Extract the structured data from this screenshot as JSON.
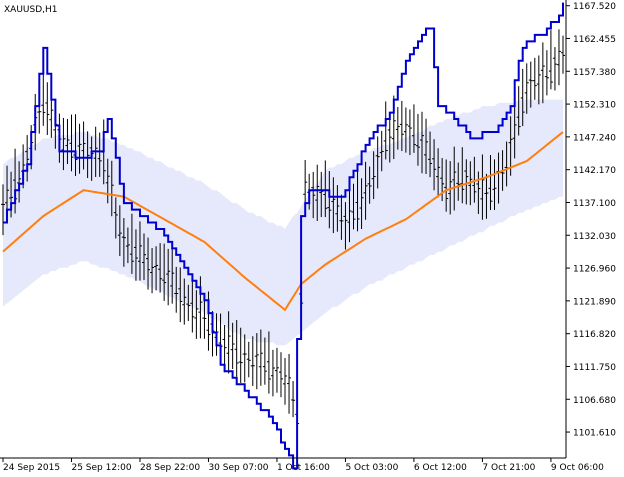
{
  "header": {
    "symbol_label": "XAUUSD,H1"
  },
  "colors": {
    "background": "#ffffff",
    "axis": "#000000",
    "price_bars": "#000000",
    "envelope_fill": "#e6e8fb",
    "moving_average": "#ff7f0e",
    "channel": "#0000cc"
  },
  "chart_data": {
    "type": "line",
    "title": "",
    "symbol": "XAUUSD",
    "timeframe": "H1",
    "y_tick_labels": [
      "1167.520",
      "1162.455",
      "1157.380",
      "1152.310",
      "1147.240",
      "1142.170",
      "1137.100",
      "1132.030",
      "1126.960",
      "1121.890",
      "1116.820",
      "1111.750",
      "1106.680",
      "1101.610"
    ],
    "y_ticks": [
      1167.52,
      1162.455,
      1157.38,
      1152.31,
      1147.24,
      1142.17,
      1137.1,
      1132.03,
      1126.96,
      1121.89,
      1116.82,
      1111.75,
      1106.68,
      1101.61
    ],
    "x_tick_labels": [
      "24 Sep 2015",
      "25 Sep 12:00",
      "28 Sep 22:00",
      "30 Sep 07:00",
      "1 Oct 16:00",
      "5 Oct 03:00",
      "6 Oct 12:00",
      "7 Oct 21:00",
      "9 Oct 06:00"
    ],
    "ylim": [
      1097.6,
      1168.4
    ],
    "n_bars": 140,
    "x_tick_bar_index": [
      0,
      17,
      34,
      51,
      68,
      85,
      102,
      119,
      136
    ],
    "series": [
      {
        "kind": "band",
        "x": [
          0,
          10,
          20,
          30,
          40,
          50,
          60,
          70,
          80,
          90,
          100,
          110,
          120,
          130,
          139
        ],
        "upper": [
          1143,
          1147,
          1148,
          1146,
          1143,
          1140,
          1136,
          1133,
          1142,
          1145,
          1147,
          1150,
          1152,
          1153,
          1153
        ],
        "lower": [
          1121,
          1126,
          1128,
          1126,
          1123,
          1120,
          1116,
          1115,
          1120,
          1124,
          1127,
          1130,
          1133,
          1136,
          1138
        ]
      },
      {
        "kind": "moving_average",
        "x": [
          0,
          10,
          20,
          30,
          40,
          50,
          60,
          70,
          74,
          80,
          90,
          100,
          110,
          120,
          130,
          139
        ],
        "values": [
          1129.5,
          1135,
          1139,
          1138,
          1134.5,
          1131,
          1125.5,
          1120.5,
          1124.5,
          1127.5,
          1131.5,
          1134.5,
          1139,
          1141,
          1143.5,
          1148
        ]
      },
      {
        "kind": "channel_line",
        "x": [
          0,
          6,
          10,
          14,
          20,
          24,
          26,
          30,
          40,
          50,
          54,
          60,
          66,
          70,
          72,
          74,
          76,
          84,
          90,
          96,
          100,
          104,
          106,
          108,
          112,
          116,
          122,
          126,
          128,
          130,
          134,
          138,
          139
        ],
        "values": [
          1134,
          1143,
          1161,
          1145,
          1144,
          1145,
          1150,
          1137,
          1132,
          1122,
          1112,
          1108,
          1104,
          1099,
          1096,
          1135,
          1139,
          1138,
          1146,
          1151,
          1159,
          1163,
          1164,
          1152,
          1150,
          1147,
          1148,
          1152,
          1159,
          1162,
          1163,
          1166,
          1168
        ]
      }
    ],
    "price_path": {
      "x": [
        0,
        5,
        10,
        15,
        20,
        25,
        28,
        30,
        35,
        40,
        45,
        50,
        55,
        60,
        65,
        70,
        73,
        75,
        80,
        85,
        90,
        95,
        100,
        105,
        108,
        110,
        115,
        120,
        125,
        130,
        135,
        139
      ],
      "values": [
        1136,
        1142,
        1153,
        1146,
        1145,
        1144,
        1135,
        1131,
        1128,
        1126,
        1122,
        1119,
        1115,
        1113,
        1112,
        1110,
        1105,
        1139,
        1138,
        1134,
        1138,
        1147,
        1149,
        1145,
        1142,
        1139,
        1141,
        1138,
        1143,
        1155,
        1157,
        1160
      ]
    }
  }
}
